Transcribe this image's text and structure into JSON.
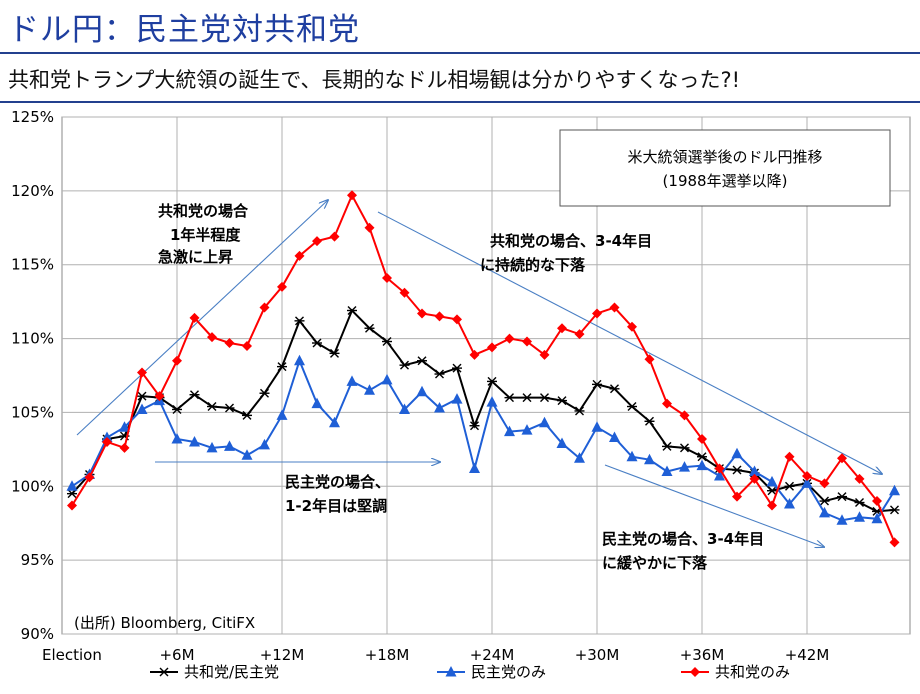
{
  "header": {
    "title": "ドル円：民主党対共和党",
    "subtitle": "共和党トランプ大統領の誕生で、長期的なドル相場観は分かりやすくなった?!"
  },
  "chart_data": {
    "type": "line",
    "ylim": [
      90,
      125
    ],
    "yticks": [
      "90%",
      "95%",
      "100%",
      "105%",
      "110%",
      "115%",
      "120%",
      "125%"
    ],
    "xtick_labels": [
      "Election",
      "+6M",
      "+12M",
      "+18M",
      "+24M",
      "+30M",
      "+36M",
      "+42M"
    ],
    "info_box": [
      "米大統領選挙後のドル円推移",
      "(1988年選挙以降)"
    ],
    "source": "(出所) Bloomberg, CitiFX",
    "annotations": {
      "rep_rise": [
        "共和党の場合",
        "1年半程度",
        "急激に上昇"
      ],
      "rep_fall": [
        "共和党の場合、3-4年目",
        "に持続的な下落"
      ],
      "dem_steady": [
        "民主党の場合、",
        "1-2年目は堅調"
      ],
      "dem_fall": [
        "民主党の場合、3-4年目",
        "に緩やかに下落"
      ]
    },
    "series": [
      {
        "name": "共和党/民主党",
        "color": "#000000",
        "marker": "asterisk",
        "values": [
          99.5,
          100.8,
          103.2,
          103.4,
          106.1,
          106.0,
          105.2,
          106.2,
          105.4,
          105.3,
          104.8,
          106.3,
          108.1,
          111.2,
          109.7,
          109.0,
          111.9,
          110.7,
          109.8,
          108.2,
          108.5,
          107.6,
          108.0,
          104.1,
          107.1,
          106.0,
          106.0,
          106.0,
          105.8,
          105.1,
          106.9,
          106.6,
          105.4,
          104.4,
          102.7,
          102.6,
          102.0,
          101.2,
          101.1,
          100.9,
          99.7,
          100.0,
          100.2,
          99.0,
          99.3,
          98.9,
          98.3,
          98.4
        ]
      },
      {
        "name": "民主党のみ",
        "color": "#1f5fd6",
        "marker": "triangle",
        "values": [
          100.0,
          100.8,
          103.3,
          104.0,
          105.2,
          105.8,
          103.2,
          103.0,
          102.6,
          102.7,
          102.1,
          102.8,
          104.8,
          108.5,
          105.6,
          104.3,
          107.1,
          106.5,
          107.2,
          105.2,
          106.4,
          105.3,
          105.9,
          101.2,
          105.7,
          103.7,
          103.8,
          104.3,
          102.9,
          101.9,
          104.0,
          103.3,
          102.0,
          101.8,
          101.0,
          101.3,
          101.4,
          100.7,
          102.2,
          101.0,
          100.3,
          98.8,
          100.2,
          98.2,
          97.7,
          97.9,
          97.8,
          99.7
        ]
      },
      {
        "name": "共和党のみ",
        "color": "#ff0000",
        "marker": "diamond",
        "values": [
          98.7,
          100.6,
          103.0,
          102.6,
          107.7,
          106.1,
          108.5,
          111.4,
          110.1,
          109.7,
          109.5,
          112.1,
          113.5,
          115.6,
          116.6,
          116.9,
          119.7,
          117.5,
          114.1,
          113.1,
          111.7,
          111.5,
          111.3,
          108.9,
          109.4,
          110.0,
          109.8,
          108.9,
          110.7,
          110.3,
          111.7,
          112.1,
          110.8,
          108.6,
          105.6,
          104.8,
          103.2,
          101.2,
          99.3,
          100.5,
          98.7,
          102.0,
          100.7,
          100.2,
          101.9,
          100.5,
          99.0,
          96.2
        ]
      }
    ]
  }
}
